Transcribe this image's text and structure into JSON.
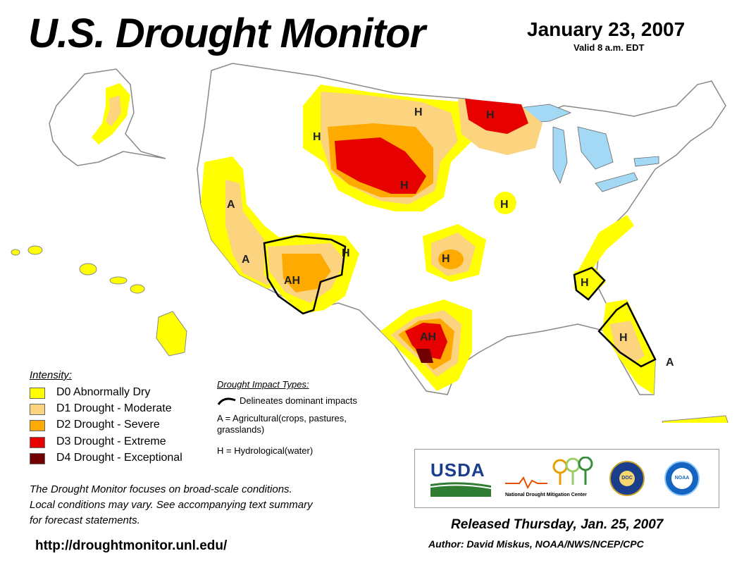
{
  "header": {
    "title": "U.S. Drought Monitor",
    "date": "January 23, 2007",
    "valid": "Valid 8 a.m. EDT"
  },
  "colors": {
    "d0": "#ffff00",
    "d1": "#fcd37f",
    "d2": "#ffaa00",
    "d3": "#e60000",
    "d4": "#730000",
    "water": "#a3d9f5",
    "border": "#888888"
  },
  "legend": {
    "title": "Intensity:",
    "items": [
      {
        "code": "D0",
        "label": "D0 Abnormally Dry"
      },
      {
        "code": "D1",
        "label": "D1 Drought - Moderate"
      },
      {
        "code": "D2",
        "label": "D2 Drought - Severe"
      },
      {
        "code": "D3",
        "label": "D3 Drought - Extreme"
      },
      {
        "code": "D4",
        "label": "D4 Drought - Exceptional"
      }
    ]
  },
  "impact": {
    "title": "Drought Impact Types:",
    "delineates": "Delineates dominant impacts",
    "ag": "A = Agricultural(crops, pastures, grasslands)",
    "hydro": "H = Hydrological(water)"
  },
  "map_labels": {
    "h_nw": "H",
    "h_nd": "H",
    "h_mn": "H",
    "h_sd": "H",
    "h_ia": "H",
    "a_ca": "A",
    "a_az": "A",
    "ah_az": "AH",
    "h_co": "H",
    "h_ks": "H",
    "ah_tx": "AH",
    "h_sc": "H",
    "h_fl": "H",
    "a_fl": "A"
  },
  "note": {
    "line1": "The Drought Monitor focuses on broad-scale conditions.",
    "line2": "Local conditions may vary. See accompanying text summary",
    "line3": "for forecast statements."
  },
  "url": "http://droughtmonitor.unl.edu/",
  "logos": {
    "usda": "USDA",
    "ndmc": "National Drought Mitigation Center",
    "doc": "DOC",
    "noaa": "NOAA"
  },
  "footer": {
    "released": "Released Thursday, Jan. 25, 2007",
    "author": "Author: David Miskus, NOAA/NWS/NCEP/CPC"
  }
}
